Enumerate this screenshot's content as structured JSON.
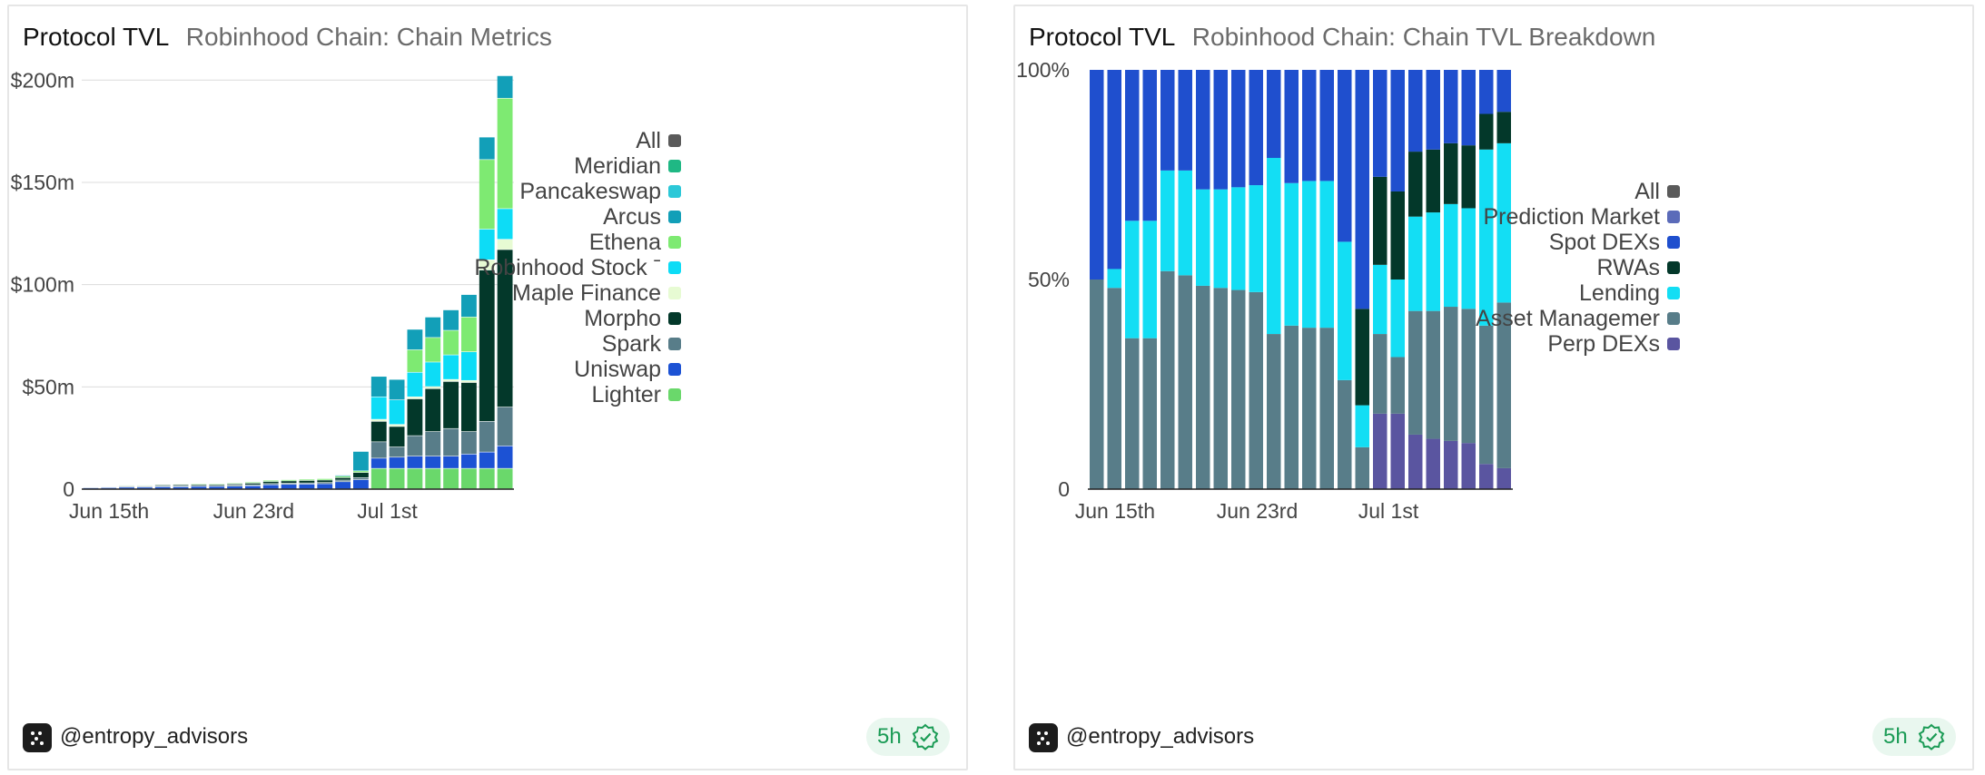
{
  "panels": [
    {
      "title": "Protocol TVL",
      "subtitle": "Robinhood Chain: Chain Metrics",
      "footer": {
        "handle": "@entropy_advisors",
        "badge": "5h"
      }
    },
    {
      "title": "Protocol TVL",
      "subtitle": "Robinhood Chain: Chain TVL Breakdown",
      "footer": {
        "handle": "@entropy_advisors",
        "badge": "5h"
      }
    }
  ],
  "chart_data": [
    {
      "type": "bar",
      "stacked": true,
      "title": "Robinhood Chain: Chain Metrics",
      "xlabel": "",
      "ylabel": "",
      "ylim": [
        0,
        205
      ],
      "yticks": [
        0,
        50,
        100,
        150,
        200
      ],
      "ytick_labels": [
        "0",
        "$50m",
        "$100m",
        "$150m",
        "$200m"
      ],
      "xtick_labels": [
        {
          "index": 0,
          "label": "Jun 15th"
        },
        {
          "index": 8,
          "label": "Jun 23rd"
        },
        {
          "index": 16,
          "label": "Jul 1st"
        }
      ],
      "grid": true,
      "legend_position": "right",
      "legend": [
        {
          "name": "All",
          "color": "#5a5a5a"
        },
        {
          "name": "Meridian",
          "color": "#1fb884"
        },
        {
          "name": "Pancakeswap",
          "color": "#2cc8d8"
        },
        {
          "name": "Arcus",
          "color": "#129fb8"
        },
        {
          "name": "Ethena",
          "color": "#7eea72"
        },
        {
          "name": "Robinhood Stock ˉ",
          "color": "#0ddcf6"
        },
        {
          "name": "Maple Finance",
          "color": "#e7fbd3"
        },
        {
          "name": "Morpho",
          "color": "#03382a"
        },
        {
          "name": "Spark",
          "color": "#587d89"
        },
        {
          "name": "Uniswap",
          "color": "#1c52d4"
        },
        {
          "name": "Lighter",
          "color": "#6ad86b"
        }
      ],
      "categories": [
        "Jun 15",
        "Jun 16",
        "Jun 17",
        "Jun 18",
        "Jun 19",
        "Jun 20",
        "Jun 21",
        "Jun 22",
        "Jun 23",
        "Jun 24",
        "Jun 25",
        "Jun 26",
        "Jun 27",
        "Jun 28",
        "Jun 29",
        "Jun 30",
        "Jul 1",
        "Jul 2",
        "Jul 3",
        "Jul 4",
        "Jul 5",
        "Jul 6",
        "Jul 7",
        "Jul 8"
      ],
      "series": [
        {
          "name": "Lighter",
          "color": "#6ad86b",
          "values": [
            0,
            0,
            0,
            0,
            0,
            0,
            0,
            0,
            0,
            0,
            0,
            0,
            0,
            0,
            0,
            0,
            10,
            10,
            10,
            10,
            10,
            10,
            10,
            10
          ]
        },
        {
          "name": "Uniswap",
          "color": "#1c52d4",
          "values": [
            0.5,
            0.6,
            0.8,
            0.8,
            1,
            1,
            1.2,
            1.2,
            1.3,
            1.5,
            2,
            2.2,
            2.3,
            2.5,
            3.5,
            4.5,
            5,
            5.5,
            6,
            6,
            6,
            7,
            8,
            11
          ]
        },
        {
          "name": "Spark",
          "color": "#587d89",
          "values": [
            0.3,
            0.3,
            0.4,
            0.4,
            0.5,
            0.5,
            0.5,
            0.5,
            0.5,
            0.5,
            0.6,
            0.6,
            0.6,
            0.6,
            0.8,
            1,
            8,
            5,
            10,
            12,
            13.5,
            11,
            15,
            19
          ]
        },
        {
          "name": "Morpho",
          "color": "#03382a",
          "values": [
            0.2,
            0.2,
            0.3,
            0.3,
            0.4,
            0.5,
            0.5,
            0.5,
            0.6,
            0.8,
            1,
            1.1,
            1.2,
            1.2,
            1.2,
            2.5,
            10,
            10,
            18,
            21,
            23,
            24,
            74,
            77
          ]
        },
        {
          "name": "Maple Finance",
          "color": "#e7fbd3",
          "values": [
            0,
            0,
            0,
            0,
            0,
            0,
            0,
            0,
            0,
            0,
            0,
            0,
            0,
            0,
            0,
            0,
            1,
            1,
            1,
            1,
            1,
            1,
            5,
            5
          ]
        },
        {
          "name": "Robinhood Stock ˉ",
          "color": "#0ddcf6",
          "values": [
            0,
            0,
            0,
            0,
            0,
            0,
            0,
            0,
            0,
            0,
            0,
            0,
            0,
            0,
            0,
            0,
            11,
            12,
            12,
            12,
            12,
            14,
            15,
            15
          ]
        },
        {
          "name": "Ethena",
          "color": "#7eea72",
          "values": [
            0.2,
            0.2,
            0.3,
            0.3,
            0.3,
            0.3,
            0.4,
            0.4,
            0.4,
            0.5,
            0.6,
            0.6,
            0.6,
            0.7,
            0.7,
            0.8,
            0,
            0,
            11,
            12,
            12,
            17,
            34,
            54
          ]
        },
        {
          "name": "Arcus",
          "color": "#129fb8",
          "values": [
            0.1,
            0.1,
            0.1,
            0.1,
            0.1,
            0.1,
            0.1,
            0.1,
            0.1,
            0.1,
            0.1,
            0.1,
            0.1,
            0.1,
            0.5,
            9.5,
            10,
            10,
            10,
            10,
            10,
            11,
            11,
            11
          ]
        }
      ]
    },
    {
      "type": "bar",
      "stacked": true,
      "percent": true,
      "title": "Robinhood Chain: Chain TVL Breakdown",
      "xlabel": "",
      "ylabel": "",
      "ylim": [
        0,
        100
      ],
      "yticks": [
        0,
        50,
        100
      ],
      "ytick_labels": [
        "0",
        "50%",
        "100%"
      ],
      "xtick_labels": [
        {
          "index": 0,
          "label": "Jun 15th"
        },
        {
          "index": 8,
          "label": "Jun 23rd"
        },
        {
          "index": 16,
          "label": "Jul 1st"
        }
      ],
      "grid": false,
      "legend_position": "right",
      "legend": [
        {
          "name": "All",
          "color": "#5a5a5a"
        },
        {
          "name": "Prediction Market",
          "color": "#5b6bb9"
        },
        {
          "name": "Spot DEXs",
          "color": "#1f4fce"
        },
        {
          "name": "RWAs",
          "color": "#03382a"
        },
        {
          "name": "Lending",
          "color": "#13def4"
        },
        {
          "name": "Asset Managemer",
          "color": "#587d89"
        },
        {
          "name": "Perp DEXs",
          "color": "#5a55a0"
        }
      ],
      "categories": [
        "Jun 15",
        "Jun 16",
        "Jun 17",
        "Jun 18",
        "Jun 19",
        "Jun 20",
        "Jun 21",
        "Jun 22",
        "Jun 23",
        "Jun 24",
        "Jun 25",
        "Jun 26",
        "Jun 27",
        "Jun 28",
        "Jun 29",
        "Jun 30",
        "Jul 1",
        "Jul 2",
        "Jul 3",
        "Jul 4",
        "Jul 5",
        "Jul 6",
        "Jul 7",
        "Jul 8"
      ],
      "series": [
        {
          "name": "Perp DEXs",
          "color": "#5a55a0",
          "values": [
            0,
            0,
            0,
            0,
            0,
            0,
            0,
            0,
            0,
            0,
            0,
            0,
            0,
            0,
            0,
            0,
            18,
            18,
            13,
            12,
            11.5,
            11,
            6,
            5
          ]
        },
        {
          "name": "Asset Managemer",
          "color": "#587d89",
          "values": [
            50,
            48,
            36,
            36,
            52,
            51,
            48.5,
            48,
            47.5,
            47,
            37,
            39,
            38.5,
            38.5,
            26,
            10,
            19,
            13.5,
            29.5,
            30.5,
            32,
            32,
            33,
            39.5
          ]
        },
        {
          "name": "Lending",
          "color": "#13def4",
          "values": [
            0,
            4.5,
            28,
            28,
            24,
            25,
            23,
            23.5,
            24.5,
            25.5,
            42,
            34,
            35,
            35,
            33,
            10,
            16.5,
            18.5,
            22.5,
            23.5,
            24.5,
            24,
            42,
            38
          ]
        },
        {
          "name": "RWAs",
          "color": "#03382a",
          "values": [
            0,
            0,
            0,
            0,
            0,
            0,
            0,
            0,
            0,
            0,
            0,
            0,
            0,
            0,
            0,
            23,
            21,
            21,
            15.5,
            15,
            14.5,
            15,
            8.5,
            7.5
          ]
        },
        {
          "name": "Spot DEXs",
          "color": "#1f4fce",
          "values": [
            50,
            47.5,
            36,
            36,
            24,
            24,
            28.5,
            28.5,
            28,
            27.5,
            21,
            27,
            26.5,
            26.5,
            41,
            57,
            25.5,
            29,
            19.5,
            19,
            17.5,
            18,
            10.5,
            10
          ]
        },
        {
          "name": "Prediction Market",
          "color": "#5b6bb9",
          "values": [
            0,
            0,
            0,
            0,
            0,
            0,
            0,
            0,
            0,
            0,
            0,
            0,
            0,
            0,
            0,
            0,
            0,
            0,
            0,
            0,
            0,
            0,
            0,
            0
          ]
        }
      ]
    }
  ]
}
